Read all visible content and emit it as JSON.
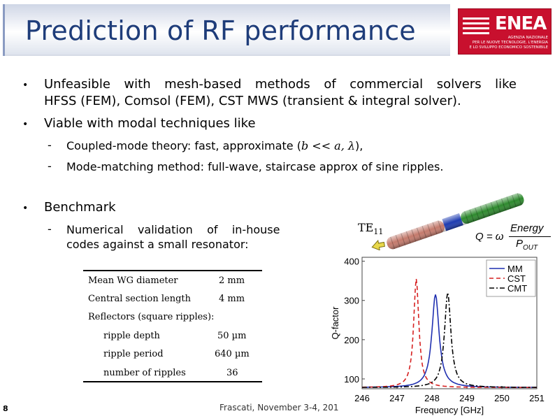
{
  "title": "Prediction of RF performance",
  "logo": {
    "name": "ENEA",
    "subtitle": [
      "AGENZIA NAZIONALE",
      "PER LE NUOVE TECNOLOGIE, L'ENERGIA",
      "E LO SVILUPPO ECONOMICO SOSTENIBILE"
    ]
  },
  "bullets": [
    {
      "line1": "Unfeasible with mesh-based methods of commercial solvers like",
      "line2": "HFSS (FEM), Comsol (FEM), CST MWS (transient & integral solver)."
    },
    {
      "line1": "Viable with modal techniques like",
      "sub": [
        {
          "prefix": "Coupled-mode theory: fast, approximate (",
          "math": "b << a, λ",
          "suffix": "),"
        },
        {
          "text": "Mode-matching method: full-wave, staircase approx of sine ripples."
        }
      ]
    },
    {
      "line1": "Benchmark",
      "sub": [
        {
          "line1": "Numerical    validation    of    in-house",
          "line2": "codes against a small resonator:"
        }
      ]
    }
  ],
  "table": {
    "rows": [
      {
        "label": "Mean WG diameter",
        "value": "2 mm"
      },
      {
        "label": "Central section length",
        "value": "4 mm"
      },
      {
        "label": "Reflectors (square ripples):",
        "value": ""
      },
      {
        "label": "ripple depth",
        "value": "50 µm"
      },
      {
        "label": "ripple period",
        "value": "640 µm"
      },
      {
        "label": "number of ripples",
        "value": "36"
      }
    ]
  },
  "footer": {
    "page": "8",
    "text": "Frascati, November 3-4, 201"
  },
  "figure": {
    "mode_label": "TE",
    "mode_sub": "11",
    "q_lhs": "Q = ω",
    "q_num": "Energy",
    "q_den": "P",
    "q_den_sub": "OUT"
  },
  "chart_data": {
    "type": "line",
    "xlabel": "Frequency [GHz]",
    "ylabel": "Q-factor",
    "xlim": [
      246,
      251
    ],
    "ylim": [
      75,
      410
    ],
    "xticks": [
      246,
      247,
      248,
      249,
      250,
      251
    ],
    "yticks": [
      100,
      200,
      300,
      400
    ],
    "legend_position": "top-right",
    "series": [
      {
        "name": "MM",
        "color": "#1f2fb0",
        "dash": "solid",
        "peak_x": 248.1,
        "peak_y": 315,
        "width": 0.25,
        "base": 78
      },
      {
        "name": "CST",
        "color": "#d62020",
        "dash": "6,4",
        "peak_x": 247.55,
        "peak_y": 355,
        "width": 0.18,
        "base": 78
      },
      {
        "name": "CMT",
        "color": "#000000",
        "dash": "7,3,2,3",
        "peak_x": 248.45,
        "peak_y": 320,
        "width": 0.22,
        "base": 78
      }
    ]
  }
}
